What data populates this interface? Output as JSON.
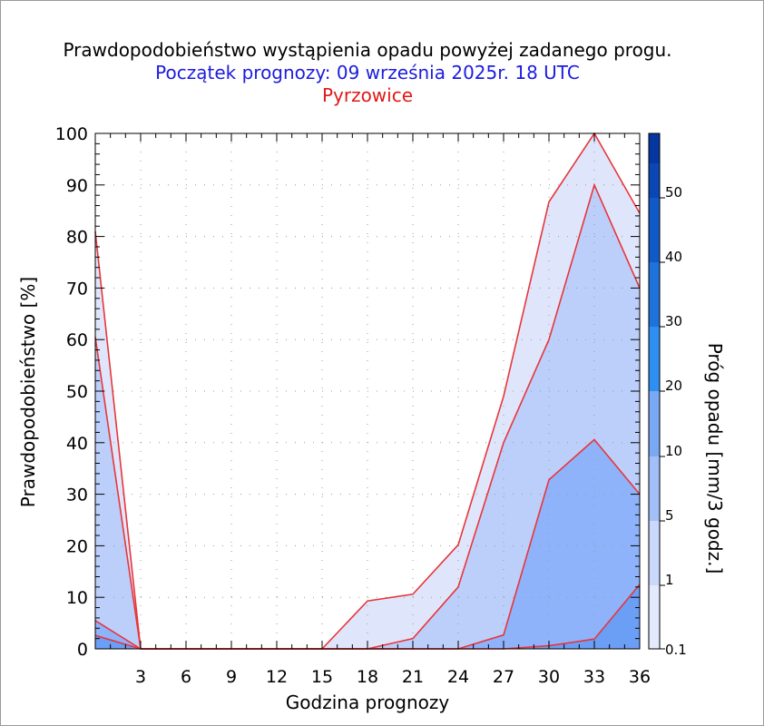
{
  "chart_data": {
    "type": "area",
    "title": "Prawdopodobieństwo wystąpienia opadu powyżej zadanego progu.",
    "subtitle": "Początek prognozy: 09 września 2025r. 18 UTC",
    "location": "Pyrzowice",
    "xlabel": "Godzina prognozy",
    "ylabel": "Prawdopodobieństwo [%]",
    "colorbar_label": "Próg opadu [mm/3 godz.]",
    "xlim": [
      0,
      36
    ],
    "ylim": [
      0,
      100
    ],
    "x_ticks": [
      3,
      6,
      9,
      12,
      15,
      18,
      21,
      24,
      27,
      30,
      33,
      36
    ],
    "y_ticks": [
      0,
      10,
      20,
      30,
      40,
      50,
      60,
      70,
      80,
      90,
      100
    ],
    "x": [
      0,
      3,
      6,
      9,
      12,
      15,
      18,
      21,
      24,
      27,
      30,
      33,
      36
    ],
    "series": [
      {
        "threshold": "0.1",
        "color": "#dfe6fc",
        "values": [
          81,
          0,
          0,
          0,
          0,
          0,
          9.3,
          10.6,
          20.2,
          49,
          86.7,
          100,
          84.5
        ]
      },
      {
        "threshold": "1",
        "color": "#bccffa",
        "values": [
          60.5,
          0,
          0,
          0,
          0,
          0,
          0,
          2,
          12,
          40,
          60,
          90,
          70
        ]
      },
      {
        "threshold": "5",
        "color": "#8eb3fb",
        "values": [
          5.5,
          0,
          0,
          0,
          0,
          0,
          0,
          0,
          0,
          2.7,
          32.8,
          40.6,
          30
        ]
      },
      {
        "threshold": "10",
        "color": "#6b9ef5",
        "values": [
          2.6,
          0,
          0,
          0,
          0,
          0,
          0,
          0,
          0,
          0,
          0.6,
          1.9,
          12.5
        ]
      }
    ],
    "colorbar": {
      "levels": [
        "0.1",
        "1",
        "5",
        "10",
        "20",
        "30",
        "40",
        "50"
      ],
      "colors": [
        "#e4eafd",
        "#c9d8fb",
        "#a3bff8",
        "#7aa9f3",
        "#2e8ff0",
        "#1f72da",
        "#1259c8",
        "#0a47b5",
        "#0636a0"
      ]
    }
  }
}
